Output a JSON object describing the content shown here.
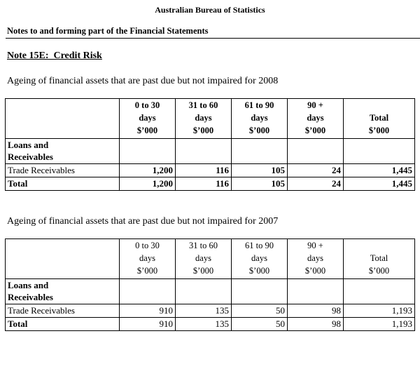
{
  "header": {
    "org": "Australian Bureau of Statistics",
    "doc": "Notes to and forming part of the Financial Statements",
    "note": "Note 15E:  Credit Risk"
  },
  "table_2008": {
    "caption": "Ageing of financial assets that are past due but not impaired for 2008",
    "col_headers": {
      "c1": "0 to 30\ndays\n$’000",
      "c2": "31 to 60\ndays\n$’000",
      "c3": "61 to 90\ndays\n$’000",
      "c4": "90 +\ndays\n$’000",
      "c5": "Total\n$’000"
    },
    "group_label": "Loans and\nReceivables",
    "rows": {
      "trade": {
        "label": "Trade Receivables",
        "c1": "1,200",
        "c2": "116",
        "c3": "105",
        "c4": "24",
        "c5": "1,445"
      },
      "total": {
        "label": "Total",
        "c1": "1,200",
        "c2": "116",
        "c3": "105",
        "c4": "24",
        "c5": "1,445"
      }
    }
  },
  "table_2007": {
    "caption": "Ageing of financial assets that are past due but not impaired for 2007",
    "col_headers": {
      "c1": "0 to 30\ndays\n$’000",
      "c2": "31 to 60\ndays\n$’000",
      "c3": "61 to 90\ndays\n$’000",
      "c4": "90 +\ndays\n$’000",
      "c5": "Total\n$’000"
    },
    "group_label": "Loans and\nReceivables",
    "rows": {
      "trade": {
        "label": "Trade Receivables",
        "c1": "910",
        "c2": "135",
        "c3": "50",
        "c4": "98",
        "c5": "1,193"
      },
      "total": {
        "label": "Total",
        "c1": "910",
        "c2": "135",
        "c3": "50",
        "c4": "98",
        "c5": "1,193"
      }
    }
  }
}
